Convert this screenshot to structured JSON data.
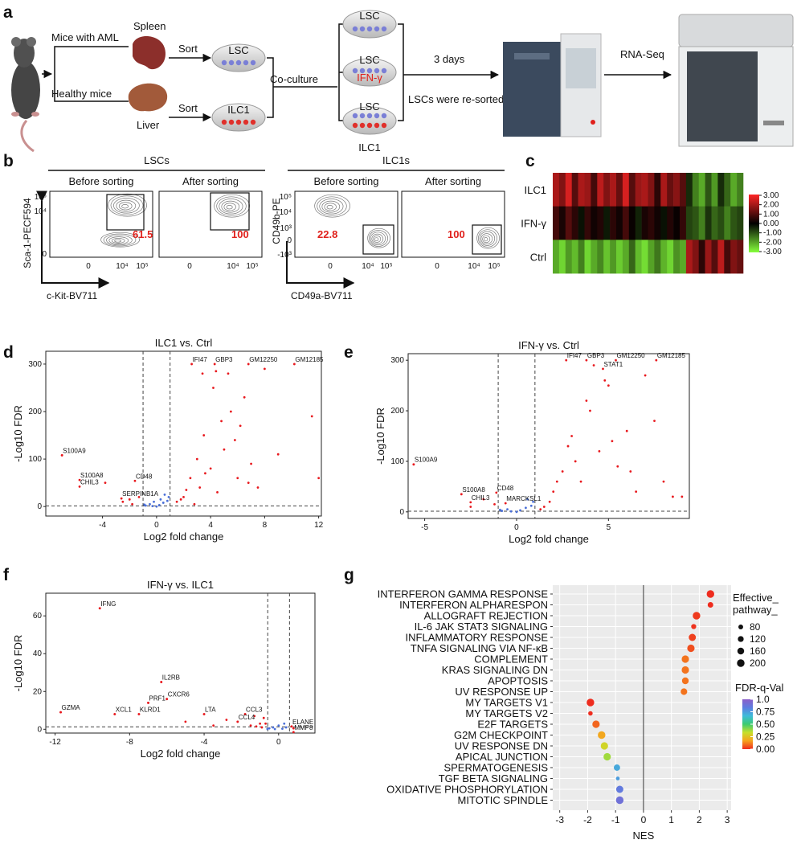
{
  "panels": {
    "a": {
      "label": "a",
      "mice_aml": "Mice with AML",
      "healthy": "Healthy mice",
      "spleen": "Spleen",
      "liver": "Liver",
      "sort": "Sort",
      "lsc": "LSC",
      "ilc1": "ILC1",
      "coculture": "Co-culture",
      "ifn": "IFN-γ",
      "days": "3 days",
      "resorted": "LSCs were re-sorted",
      "rnaseq": "RNA-Seq"
    },
    "b": {
      "label": "b",
      "lscs": "LSCs",
      "ilc1s": "ILC1s",
      "before": "Before sorting",
      "after": "After sorting",
      "gates": [
        61.5,
        100,
        22.8,
        100
      ],
      "lsc_ylabel": "Sca-1-PECF594",
      "lsc_xlabel": "c-Kit-BV711",
      "ilc_ylabel": "CD49b-PE",
      "ilc_xlabel": "CD49a-BV711",
      "lsc_yticks": [
        "10⁵",
        "10⁴",
        "0"
      ],
      "ilc_yticks": [
        "10⁵",
        "10⁴",
        "10³",
        "0",
        "-10³"
      ],
      "xticks": [
        "0",
        "10⁴",
        "10⁵"
      ]
    },
    "c": {
      "label": "c",
      "colors": {
        "high": "#ff2626",
        "mid": "#000000",
        "low": "#86ff3c"
      },
      "clim": [
        -3,
        3
      ],
      "rows": [
        {
          "name": "ILC1",
          "values": [
            2,
            1.5,
            2.5,
            1,
            2,
            1.8,
            0.8,
            2.2,
            1.5,
            2,
            1.2,
            2.5,
            1,
            1.8,
            2,
            1.5,
            0.5,
            2,
            1.2,
            1.6,
            1,
            -0.5,
            -1.5,
            -2,
            -1,
            -1.8,
            -0.5,
            -1.2,
            -2,
            -1.5
          ]
        },
        {
          "name": "IFN-γ",
          "values": [
            0.8,
            0.3,
            1,
            0.5,
            -0.2,
            0.6,
            0.2,
            0.4,
            -0.3,
            0.5,
            0.2,
            0.8,
            0.1,
            -0.4,
            0.3,
            0.5,
            0.2,
            -0.2,
            0.4,
            0.1,
            0.6,
            -0.8,
            -1,
            -1.5,
            -0.6,
            -1.2,
            -0.9,
            -1.5,
            -1,
            -0.8
          ]
        },
        {
          "name": "Ctrl",
          "values": [
            -2,
            -2.5,
            -1.8,
            -2.2,
            -1.5,
            -2.5,
            -2,
            -1.6,
            -2.3,
            -1.8,
            -2.4,
            -2,
            -1.2,
            -2.2,
            -2.6,
            -1.9,
            -1.4,
            -2.1,
            -2.5,
            -1.7,
            -2,
            2,
            1.5,
            0.5,
            1.8,
            1,
            2.2,
            0.8,
            1.5,
            1.2
          ]
        }
      ],
      "ticks": [
        {
          "value": 3,
          "label": "3.00"
        },
        {
          "value": 2,
          "label": "2.00"
        },
        {
          "value": 1,
          "label": "1.00"
        },
        {
          "value": 0,
          "label": "0.00"
        },
        {
          "value": -1,
          "label": "-1.00"
        },
        {
          "value": -2,
          "label": "-2.00"
        },
        {
          "value": -3,
          "label": "-3.00"
        }
      ]
    },
    "d": {
      "label": "d",
      "type": "scatter",
      "title": "ILC1 vs. Ctrl",
      "xlabel": "Log2 fold change",
      "ylabel": "-Log10 FDR",
      "xlim": [
        -8.2,
        12.2
      ],
      "ylim": [
        -20,
        327
      ],
      "xticks": [
        -4,
        0,
        4,
        8,
        12
      ],
      "yticks": [
        0,
        100,
        200,
        300
      ],
      "thresholds": {
        "x": [
          -1,
          1
        ],
        "y": 1.3
      },
      "series": [
        {
          "color": "#e8191e",
          "x": [
            2,
            2.5,
            3,
            3.2,
            3.5,
            4,
            4.2,
            4.5,
            5,
            5.3,
            5.5,
            6,
            6.2,
            6.5,
            7,
            7.5,
            8,
            9,
            11.5,
            12,
            1.5,
            1.8,
            2.2,
            2.8,
            3.6,
            4.8,
            5.8,
            6.8,
            -1.3,
            -2,
            -2.5,
            -3.8,
            -7,
            -1.8,
            3.4,
            4.4
          ],
          "values": [
            20,
            60,
            100,
            40,
            150,
            80,
            250,
            30,
            120,
            280,
            200,
            60,
            170,
            230,
            90,
            40,
            290,
            110,
            190,
            60,
            10,
            15,
            35,
            5,
            70,
            180,
            140,
            50,
            20,
            15,
            10,
            50,
            108,
            5,
            280,
            285
          ]
        },
        {
          "color": "#4a6fd8",
          "x": [
            -0.8,
            -0.5,
            -0.3,
            0,
            0.2,
            0.5,
            0.8,
            0.9,
            -0.9,
            0.6,
            -0.2,
            0.3
          ],
          "values": [
            2,
            5,
            1,
            0,
            3,
            8,
            12,
            20,
            4,
            25,
            10,
            15
          ]
        }
      ],
      "genes": [
        {
          "name": "IFI47",
          "x": 2.6,
          "y": 300
        },
        {
          "name": "GBP3",
          "x": 4.3,
          "y": 300
        },
        {
          "name": "GM12250",
          "x": 6.8,
          "y": 300
        },
        {
          "name": "GM12185",
          "x": 10.2,
          "y": 300
        },
        {
          "name": "S100A9",
          "x": -7,
          "y": 108
        },
        {
          "name": "S100A8",
          "x": -5.7,
          "y": 56
        },
        {
          "name": "CHIL3",
          "x": -5.7,
          "y": 42
        },
        {
          "name": "CD48",
          "x": -1.6,
          "y": 54
        },
        {
          "name": "SERPINB1A",
          "x": -2.6,
          "y": 17
        }
      ]
    },
    "e": {
      "label": "e",
      "type": "scatter",
      "title": "IFN-γ vs. Ctrl",
      "xlabel": "Log2 fold change",
      "ylabel": "-Log10 FDR",
      "xlim": [
        -5.9,
        9.4
      ],
      "ylim": [
        -13,
        313
      ],
      "xticks": [
        -5,
        0,
        5
      ],
      "yticks": [
        0,
        100,
        200,
        300
      ],
      "thresholds": {
        "x": [
          -1,
          1
        ],
        "y": 1.3
      },
      "series": [
        {
          "color": "#e8191e",
          "x": [
            1.5,
            2,
            2.5,
            3,
            3.5,
            4,
            4.5,
            5,
            5.5,
            6,
            6.5,
            7,
            7.5,
            8,
            8.5,
            9,
            1.8,
            2.2,
            3.2,
            3.8,
            4.2,
            5.2,
            6.2,
            -1.2,
            -1.8,
            -2.5,
            -5.6,
            1.3,
            2.8,
            4.8
          ],
          "values": [
            10,
            40,
            80,
            150,
            60,
            200,
            120,
            250,
            90,
            160,
            40,
            270,
            180,
            60,
            30,
            30,
            20,
            60,
            100,
            220,
            290,
            140,
            80,
            15,
            25,
            10,
            94,
            5,
            130,
            260
          ]
        },
        {
          "color": "#4a6fd8",
          "x": [
            -0.8,
            -0.5,
            -0.3,
            0,
            0.2,
            0.5,
            0.8,
            0.9,
            -0.9,
            0.6
          ],
          "values": [
            2,
            5,
            1,
            0,
            3,
            8,
            12,
            20,
            4,
            25
          ]
        }
      ],
      "genes": [
        {
          "name": "IFI47",
          "x": 2.7,
          "y": 300
        },
        {
          "name": "GBP3",
          "x": 3.8,
          "y": 300
        },
        {
          "name": "GM12250",
          "x": 5.4,
          "y": 300
        },
        {
          "name": "GM12185",
          "x": 7.6,
          "y": 300
        },
        {
          "name": "STAT1",
          "x": 4.7,
          "y": 283
        },
        {
          "name": "S100A9",
          "x": -5.6,
          "y": 94
        },
        {
          "name": "S100A8",
          "x": -3,
          "y": 35
        },
        {
          "name": "CHIL3",
          "x": -2.5,
          "y": 19
        },
        {
          "name": "CD48",
          "x": -1.1,
          "y": 38
        },
        {
          "name": "MARCKSL1",
          "x": -0.6,
          "y": 17
        }
      ]
    },
    "f": {
      "label": "f",
      "type": "scatter",
      "title": "IFN-γ vs. ILC1",
      "xlabel": "Log2 fold change",
      "ylabel": "-Log10 FDR",
      "xlim": [
        -12.5,
        1.95
      ],
      "ylim": [
        -2,
        72
      ],
      "xticks": [
        -12,
        -8,
        -4,
        0
      ],
      "yticks": [
        0,
        20,
        40,
        60
      ],
      "thresholds": {
        "x": [
          -0.585,
          0.585
        ],
        "y": 1.3
      },
      "series": [
        {
          "color": "#e8191e",
          "x": [
            -11.7,
            -9.6,
            -8.8,
            -6.3,
            -6,
            -7,
            -7.5,
            -4,
            -1.8,
            -2.2,
            -0.8,
            -1,
            -1.5,
            -2.8,
            -3.5,
            -5,
            -1.2,
            -0.9,
            -1.3,
            -0.7,
            0.7,
            0.8
          ],
          "values": [
            9,
            64,
            8,
            25,
            16,
            14,
            8,
            8,
            8,
            4,
            6,
            3,
            2,
            5,
            2,
            4,
            1.5,
            1,
            7,
            3,
            1.5,
            0.5
          ]
        },
        {
          "color": "#4a6fd8",
          "x": [
            -0.5,
            -0.3,
            0,
            0.2,
            0.4,
            -0.6,
            -0.2,
            0.3
          ],
          "values": [
            0.5,
            1,
            2,
            0.3,
            1,
            0.2,
            0.1,
            3
          ]
        }
      ],
      "genes": [
        {
          "name": "IFNG",
          "x": -9.6,
          "y": 64
        },
        {
          "name": "GZMA",
          "x": -11.7,
          "y": 9
        },
        {
          "name": "XCL1",
          "x": -8.8,
          "y": 8
        },
        {
          "name": "IL2RB",
          "x": -6.3,
          "y": 25
        },
        {
          "name": "CXCR6",
          "x": -6,
          "y": 16
        },
        {
          "name": "PRF1",
          "x": -7,
          "y": 14
        },
        {
          "name": "KLRD1",
          "x": -7.5,
          "y": 8
        },
        {
          "name": "LTA",
          "x": -4,
          "y": 8
        },
        {
          "name": "CCL3",
          "x": -1.8,
          "y": 8
        },
        {
          "name": "CCL4",
          "x": -2.2,
          "y": 4
        },
        {
          "name": "ELANE",
          "x": 0.7,
          "y": 1.5
        },
        {
          "name": "MMP8",
          "x": 0.8,
          "y": -1.5
        }
      ]
    },
    "g": {
      "label": "g",
      "type": "dot",
      "xlabel": "NES",
      "xlim": [
        -3.25,
        3.14
      ],
      "xticks": [
        -3,
        -2,
        -1,
        0,
        1,
        2,
        3
      ],
      "categories": [
        "INTERFERON GAMMA RESPONSE",
        "INTERFERON ALPHARESPON",
        "ALLOGRAFT REJECTION",
        "IL-6 JAK STAT3 SIGNALING",
        "INFLAMMATORY RESPONSE",
        "TNFA SIGNALING VIA NF-κB",
        "COMPLEMENT",
        "KRAS SIGNALING DN",
        "APOPTOSIS",
        "UV RESPONSE UP",
        "MY TARGETS V1",
        "MY TARGETS V2",
        "E2F TARGETS",
        "G2M CHECKPOINT",
        "UV RESPONSE DN",
        "APICAL JUNCTION",
        "SPERMATOGENESIS",
        "TGF BETA SIGNALING",
        "OXIDATIVE PHOSPHORYLATION",
        "MITOTIC SPINDLE"
      ],
      "values": [
        2.4,
        2.4,
        1.9,
        1.8,
        1.75,
        1.7,
        1.5,
        1.5,
        1.5,
        1.45,
        -1.9,
        -1.9,
        -1.7,
        -1.5,
        -1.4,
        -1.3,
        -0.95,
        -0.92,
        -0.85,
        -0.85
      ],
      "sizes": [
        200,
        110,
        200,
        90,
        180,
        190,
        190,
        190,
        160,
        150,
        200,
        70,
        190,
        200,
        190,
        190,
        140,
        50,
        180,
        200
      ],
      "fdr": [
        0,
        0,
        0.02,
        0.01,
        0.03,
        0.05,
        0.1,
        0.1,
        0.1,
        0.1,
        0,
        0,
        0.08,
        0.18,
        0.3,
        0.38,
        0.72,
        0.75,
        0.85,
        0.9
      ],
      "colorscale": [
        "#ee2c1e",
        "#f6a21d",
        "#c7e02b",
        "#3ccb6f",
        "#3dbcd9",
        "#5d7de0",
        "#8c5fc9"
      ],
      "size_legend": {
        "title": [
          "Effective_",
          "pathway_"
        ],
        "values": [
          80,
          120,
          160,
          200
        ]
      },
      "color_legend": {
        "title": "FDR-q-Val",
        "ticks": [
          {
            "value": 1,
            "label": "1.0"
          },
          0.75,
          {
            "value": 0.5,
            "label": "0.50"
          },
          0.25,
          {
            "value": 0,
            "label": "0.00"
          }
        ]
      }
    }
  }
}
